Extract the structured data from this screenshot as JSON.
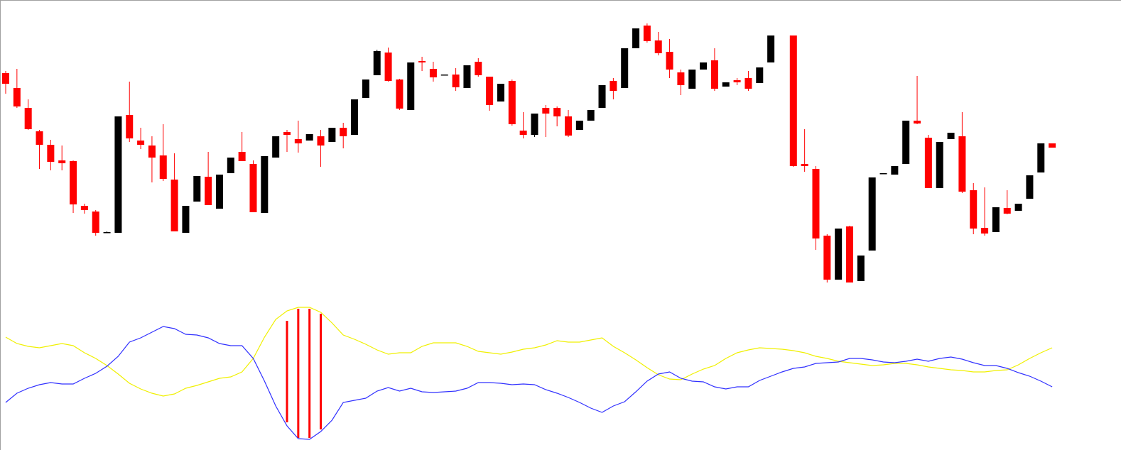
{
  "chart_data": [
    {
      "type": "candlestick",
      "ylim": [
        0,
        420
      ],
      "up_color": "#000000",
      "down_color": "#ff0000",
      "open": [
        317,
        296,
        268,
        235,
        216,
        194,
        193,
        130,
        122,
        93,
        92,
        258,
        222,
        215,
        201,
        167,
        92,
        136,
        171,
        126,
        176,
        206,
        189,
        120,
        198,
        234,
        224,
        222,
        228,
        220,
        240,
        230,
        282,
        314,
        346,
        308,
        265,
        334,
        323,
        315,
        315,
        296,
        333,
        312,
        277,
        306,
        236,
        230,
        268,
        268,
        256,
        237,
        250,
        268,
        306,
        296,
        352,
        384,
        363,
        347,
        318,
        295,
        322,
        335,
        298,
        307,
        310,
        303,
        332,
        null,
        370,
        189,
        182,
        88,
        26,
        101,
        24,
        67,
        176,
        174,
        189,
        250,
        226,
        155,
        224,
        228,
        152,
        99,
        93,
        127,
        123,
        140,
        177,
        218
      ],
      "high": [
        320,
        323,
        280,
        237,
        223,
        215,
        194,
        133,
        124,
        94,
        256,
        305,
        240,
        228,
        245,
        204,
        130,
        172,
        206,
        174,
        198,
        234,
        194,
        200,
        228,
        237,
        250,
        231,
        237,
        240,
        247,
        280,
        308,
        350,
        353,
        309,
        332,
        340,
        333,
        315,
        324,
        328,
        338,
        312,
        302,
        308,
        262,
        260,
        272,
        270,
        265,
        250,
        265,
        300,
        310,
        352,
        380,
        387,
        375,
        365,
        322,
        322,
        332,
        352,
        304,
        310,
        320,
        325,
        370,
        null,
        370,
        238,
        186,
        90,
        98,
        102,
        60,
        170,
        176,
        186,
        250,
        313,
        230,
        220,
        233,
        262,
        162,
        156,
        128,
        152,
        133,
        173,
        218,
        218
      ],
      "low": [
        288,
        268,
        237,
        182,
        180,
        180,
        120,
        119,
        88,
        92,
        92,
        220,
        210,
        163,
        165,
        94,
        92,
        136,
        131,
        126,
        176,
        193,
        121,
        120,
        198,
        206,
        205,
        222,
        185,
        220,
        211,
        230,
        282,
        314,
        305,
        265,
        265,
        320,
        305,
        315,
        292,
        296,
        312,
        264,
        277,
        243,
        225,
        227,
        227,
        242,
        227,
        237,
        250,
        268,
        280,
        296,
        352,
        360,
        342,
        310,
        286,
        295,
        322,
        292,
        298,
        300,
        292,
        303,
        332,
        null,
        185,
        178,
        68,
        22,
        26,
        22,
        24,
        67,
        176,
        174,
        189,
        245,
        155,
        155,
        224,
        148,
        90,
        88,
        93,
        118,
        123,
        140,
        177,
        212
      ],
      "close": [
        302,
        270,
        238,
        216,
        192,
        190,
        132,
        124,
        92,
        93,
        256,
        225,
        216,
        198,
        168,
        94,
        130,
        172,
        131,
        174,
        198,
        193,
        121,
        200,
        228,
        230,
        218,
        231,
        215,
        240,
        228,
        280,
        308,
        348,
        306,
        267,
        332,
        332,
        311,
        315,
        297,
        328,
        314,
        272,
        302,
        245,
        230,
        260,
        260,
        256,
        229,
        250,
        265,
        300,
        292,
        352,
        380,
        362,
        345,
        322,
        300,
        322,
        332,
        295,
        304,
        304,
        295,
        325,
        370,
        null,
        186,
        186,
        84,
        26,
        98,
        22,
        60,
        170,
        176,
        186,
        250,
        246,
        155,
        220,
        233,
        150,
        98,
        91,
        128,
        119,
        133,
        173,
        218,
        212
      ]
    },
    {
      "type": "line",
      "ylim": [
        -95,
        95
      ],
      "series": [
        {
          "color": "#f0f000",
          "values": [
            50,
            41,
            37,
            35,
            38,
            41,
            38,
            28,
            20,
            10,
            -2,
            -15,
            -23,
            -29,
            -33,
            -30,
            -22,
            -18,
            -13,
            -8,
            -6,
            1,
            20,
            50,
            75,
            87,
            92,
            92,
            85,
            70,
            53,
            47,
            40,
            32,
            26,
            28,
            28,
            37,
            42,
            42,
            42,
            37,
            30,
            28,
            26,
            29,
            33,
            35,
            39,
            45,
            43,
            43,
            46,
            49,
            37,
            28,
            18,
            7,
            -3,
            -9,
            -10,
            -2,
            5,
            10,
            20,
            28,
            32,
            35,
            34,
            33,
            31,
            28,
            23,
            20,
            16,
            14,
            12,
            10,
            11,
            13,
            13,
            11,
            8,
            6,
            4,
            3,
            1,
            1,
            3,
            4,
            11,
            20,
            28,
            35
          ]
        },
        {
          "color": "#3030ff",
          "values": [
            -42,
            -29,
            -22,
            -17,
            -14,
            -16,
            -16,
            -8,
            -1,
            9,
            23,
            43,
            49,
            57,
            65,
            62,
            54,
            53,
            49,
            41,
            38,
            38,
            20,
            -12,
            -47,
            -75,
            -93,
            -94,
            -83,
            -67,
            -42,
            -39,
            -36,
            -26,
            -21,
            -26,
            -22,
            -27,
            -28,
            -27,
            -26,
            -22,
            -14,
            -14,
            -15,
            -17,
            -16,
            -17,
            -24,
            -29,
            -35,
            -42,
            -50,
            -56,
            -47,
            -41,
            -27,
            -12,
            -2,
            1,
            -8,
            -12,
            -13,
            -20,
            -23,
            -20,
            -20,
            -11,
            -5,
            1,
            6,
            8,
            13,
            14,
            15,
            20,
            20,
            18,
            15,
            14,
            16,
            19,
            16,
            20,
            22,
            19,
            14,
            10,
            10,
            6,
            0,
            -5,
            -12,
            -20
          ]
        }
      ],
      "bars": {
        "color": "#ff0000",
        "high": [
          null,
          null,
          null,
          null,
          null,
          null,
          null,
          null,
          null,
          null,
          null,
          null,
          null,
          null,
          null,
          null,
          null,
          null,
          null,
          null,
          null,
          null,
          null,
          null,
          null,
          73,
          90,
          90,
          83,
          null,
          null,
          null,
          null,
          null,
          null,
          null,
          null,
          null,
          null,
          null,
          null,
          null,
          null,
          null,
          null,
          null,
          null,
          null,
          null,
          null,
          null,
          null,
          null,
          null,
          null,
          null,
          null,
          null,
          null,
          null,
          null,
          null,
          null,
          null,
          null,
          null,
          null,
          null,
          null,
          null,
          null,
          null,
          null,
          null,
          null,
          null,
          null,
          null,
          null,
          null,
          null,
          null,
          null,
          null,
          null,
          null,
          null,
          null,
          null,
          null,
          null,
          null,
          null,
          null
        ],
        "low": [
          null,
          null,
          null,
          null,
          null,
          null,
          null,
          null,
          null,
          null,
          null,
          null,
          null,
          null,
          null,
          null,
          null,
          null,
          null,
          null,
          null,
          null,
          null,
          null,
          null,
          -70,
          -92,
          -92,
          -80,
          null,
          null,
          null,
          null,
          null,
          null,
          null,
          null,
          null,
          null,
          null,
          null,
          null,
          null,
          null,
          null,
          null,
          null,
          null,
          null,
          null,
          null,
          null,
          null,
          null,
          null,
          null,
          null,
          null,
          null,
          null,
          null,
          null,
          null,
          null,
          null,
          null,
          null,
          null,
          null,
          null,
          null,
          null,
          null,
          null,
          null,
          null,
          null,
          null,
          null,
          null,
          null,
          null,
          null,
          null,
          null,
          null,
          null,
          null,
          null,
          null,
          null,
          null,
          null,
          null
        ]
      }
    }
  ]
}
